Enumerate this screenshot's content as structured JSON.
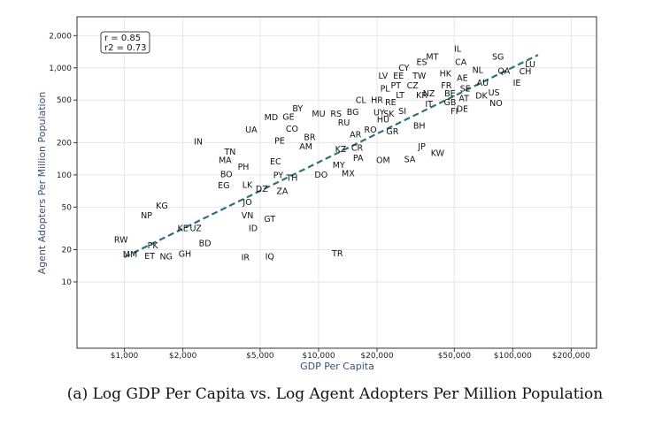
{
  "caption": "(a) Log GDP Per Capita vs. Log Agent Adopters Per Million Population",
  "chart_data": {
    "type": "scatter",
    "xscale": "log",
    "yscale": "log",
    "xlabel": "GDP Per Capita",
    "ylabel": "Agent Adopters Per Million Population",
    "xlim": [
      570,
      270000
    ],
    "ylim": [
      2.4,
      3000
    ],
    "grid": true,
    "xticks": [
      {
        "value": 1000,
        "label": "$1,000"
      },
      {
        "value": 2000,
        "label": "$2,000"
      },
      {
        "value": 5000,
        "label": "$5,000"
      },
      {
        "value": 10000,
        "label": "$10,000"
      },
      {
        "value": 20000,
        "label": "$20,000"
      },
      {
        "value": 50000,
        "label": "$50,000"
      },
      {
        "value": 100000,
        "label": "$100,000"
      },
      {
        "value": 200000,
        "label": "$200,000"
      }
    ],
    "yticks": [
      {
        "value": 10,
        "label": "10"
      },
      {
        "value": 20,
        "label": "20"
      },
      {
        "value": 50,
        "label": "50"
      },
      {
        "value": 100,
        "label": "100"
      },
      {
        "value": 200,
        "label": "200"
      },
      {
        "value": 500,
        "label": "500"
      },
      {
        "value": 1000,
        "label": "1,000"
      },
      {
        "value": 2000,
        "label": "2,000"
      }
    ],
    "stats": {
      "r": "r = 0.85",
      "r2": "r2 = 0.73"
    },
    "trendline": {
      "style": "dashed",
      "color": "#2e6f80",
      "x": [
        1000,
        135000
      ],
      "y": [
        17,
        1320
      ]
    },
    "points": [
      {
        "label": "IL",
        "gdp": 52000,
        "adopters": 1520
      },
      {
        "label": "MT",
        "gdp": 38500,
        "adopters": 1270
      },
      {
        "label": "ES",
        "gdp": 34000,
        "adopters": 1140
      },
      {
        "label": "SG",
        "gdp": 84000,
        "adopters": 1270
      },
      {
        "label": "CA",
        "gdp": 54000,
        "adopters": 1140
      },
      {
        "label": "LU",
        "gdp": 123000,
        "adopters": 1080
      },
      {
        "label": "CY",
        "gdp": 27500,
        "adopters": 1010
      },
      {
        "label": "NL",
        "gdp": 66000,
        "adopters": 960
      },
      {
        "label": "QA",
        "gdp": 90000,
        "adopters": 940
      },
      {
        "label": "CH",
        "gdp": 116000,
        "adopters": 930
      },
      {
        "label": "HK",
        "gdp": 45000,
        "adopters": 890
      },
      {
        "label": "LV",
        "gdp": 21500,
        "adopters": 850
      },
      {
        "label": "EE",
        "gdp": 25800,
        "adopters": 850
      },
      {
        "label": "TW",
        "gdp": 33000,
        "adopters": 850
      },
      {
        "label": "AE",
        "gdp": 55000,
        "adopters": 810
      },
      {
        "label": "AU",
        "gdp": 70000,
        "adopters": 730
      },
      {
        "label": "IE",
        "gdp": 105000,
        "adopters": 730
      },
      {
        "label": "PT",
        "gdp": 25000,
        "adopters": 690
      },
      {
        "label": "CZ",
        "gdp": 30500,
        "adopters": 690
      },
      {
        "label": "FR",
        "gdp": 45500,
        "adopters": 690
      },
      {
        "label": "PL",
        "gdp": 22000,
        "adopters": 640
      },
      {
        "label": "SE",
        "gdp": 57000,
        "adopters": 640
      },
      {
        "label": "NZ",
        "gdp": 37000,
        "adopters": 580
      },
      {
        "label": "BE",
        "gdp": 47500,
        "adopters": 580
      },
      {
        "label": "US",
        "gdp": 80000,
        "adopters": 590
      },
      {
        "label": "LT",
        "gdp": 26300,
        "adopters": 560
      },
      {
        "label": "KR",
        "gdp": 34000,
        "adopters": 560
      },
      {
        "label": "DK",
        "gdp": 69000,
        "adopters": 550
      },
      {
        "label": "AT",
        "gdp": 56000,
        "adopters": 520
      },
      {
        "label": "CL",
        "gdp": 16500,
        "adopters": 500
      },
      {
        "label": "HR",
        "gdp": 20000,
        "adopters": 500
      },
      {
        "label": "RE",
        "gdp": 23500,
        "adopters": 480
      },
      {
        "label": "IT",
        "gdp": 37000,
        "adopters": 460
      },
      {
        "label": "GB",
        "gdp": 47500,
        "adopters": 480
      },
      {
        "label": "NO",
        "gdp": 82000,
        "adopters": 470
      },
      {
        "label": "DE",
        "gdp": 55000,
        "adopters": 415
      },
      {
        "label": "FI",
        "gdp": 50000,
        "adopters": 395
      },
      {
        "label": "BY",
        "gdp": 7800,
        "adopters": 420
      },
      {
        "label": "UY",
        "gdp": 20500,
        "adopters": 385
      },
      {
        "label": "SK",
        "gdp": 23000,
        "adopters": 375
      },
      {
        "label": "SI",
        "gdp": 27000,
        "adopters": 395
      },
      {
        "label": "MU",
        "gdp": 10000,
        "adopters": 375
      },
      {
        "label": "RS",
        "gdp": 12300,
        "adopters": 375
      },
      {
        "label": "BG",
        "gdp": 15000,
        "adopters": 390
      },
      {
        "label": "GE",
        "gdp": 7000,
        "adopters": 350
      },
      {
        "label": "MD",
        "gdp": 5700,
        "adopters": 345
      },
      {
        "label": "HU",
        "gdp": 21500,
        "adopters": 330
      },
      {
        "label": "RU",
        "gdp": 13500,
        "adopters": 310
      },
      {
        "label": "BH",
        "gdp": 33000,
        "adopters": 290
      },
      {
        "label": "CO",
        "gdp": 7300,
        "adopters": 270
      },
      {
        "label": "UA",
        "gdp": 4500,
        "adopters": 265
      },
      {
        "label": "RO",
        "gdp": 18500,
        "adopters": 265
      },
      {
        "label": "GR",
        "gdp": 24000,
        "adopters": 255
      },
      {
        "label": "AR",
        "gdp": 15500,
        "adopters": 240
      },
      {
        "label": "BR",
        "gdp": 9000,
        "adopters": 225
      },
      {
        "label": "PE",
        "gdp": 6300,
        "adopters": 210
      },
      {
        "label": "IN",
        "gdp": 2400,
        "adopters": 205
      },
      {
        "label": "AM",
        "gdp": 8600,
        "adopters": 185
      },
      {
        "label": "JP",
        "gdp": 34000,
        "adopters": 185
      },
      {
        "label": "KZ",
        "gdp": 13000,
        "adopters": 175
      },
      {
        "label": "CR",
        "gdp": 15800,
        "adopters": 180
      },
      {
        "label": "TN",
        "gdp": 3500,
        "adopters": 165
      },
      {
        "label": "KW",
        "gdp": 41000,
        "adopters": 160
      },
      {
        "label": "MA",
        "gdp": 3300,
        "adopters": 138
      },
      {
        "label": "PA",
        "gdp": 16000,
        "adopters": 145
      },
      {
        "label": "OM",
        "gdp": 21500,
        "adopters": 138
      },
      {
        "label": "SA",
        "gdp": 29500,
        "adopters": 140
      },
      {
        "label": "EC",
        "gdp": 6000,
        "adopters": 134
      },
      {
        "label": "MY",
        "gdp": 12700,
        "adopters": 124
      },
      {
        "label": "PH",
        "gdp": 4100,
        "adopters": 119
      },
      {
        "label": "MX",
        "gdp": 14200,
        "adopters": 104
      },
      {
        "label": "BO",
        "gdp": 3350,
        "adopters": 102
      },
      {
        "label": "PY",
        "gdp": 6200,
        "adopters": 100
      },
      {
        "label": "DO",
        "gdp": 10300,
        "adopters": 101
      },
      {
        "label": "TH",
        "gdp": 7300,
        "adopters": 94
      },
      {
        "label": "EG",
        "gdp": 3250,
        "adopters": 80
      },
      {
        "label": "LK",
        "gdp": 4300,
        "adopters": 81
      },
      {
        "label": "DZ",
        "gdp": 5100,
        "adopters": 74
      },
      {
        "label": "ZA",
        "gdp": 6500,
        "adopters": 71
      },
      {
        "label": "JO",
        "gdp": 4300,
        "adopters": 56
      },
      {
        "label": "KG",
        "gdp": 1560,
        "adopters": 52
      },
      {
        "label": "NP",
        "gdp": 1300,
        "adopters": 42
      },
      {
        "label": "VN",
        "gdp": 4300,
        "adopters": 42
      },
      {
        "label": "GT",
        "gdp": 5600,
        "adopters": 39
      },
      {
        "label": "KE",
        "gdp": 2000,
        "adopters": 32
      },
      {
        "label": "UZ",
        "gdp": 2330,
        "adopters": 32
      },
      {
        "label": "ID",
        "gdp": 4600,
        "adopters": 32
      },
      {
        "label": "RW",
        "gdp": 960,
        "adopters": 25
      },
      {
        "label": "BD",
        "gdp": 2600,
        "adopters": 23
      },
      {
        "label": "PK",
        "gdp": 1400,
        "adopters": 22
      },
      {
        "label": "MM",
        "gdp": 1070,
        "adopters": 18.2
      },
      {
        "label": "ET",
        "gdp": 1350,
        "adopters": 17.5
      },
      {
        "label": "NG",
        "gdp": 1640,
        "adopters": 17.3
      },
      {
        "label": "GH",
        "gdp": 2050,
        "adopters": 18.3
      },
      {
        "label": "IR",
        "gdp": 4200,
        "adopters": 17.0
      },
      {
        "label": "IQ",
        "gdp": 5600,
        "adopters": 17.3
      },
      {
        "label": "TR",
        "gdp": 12500,
        "adopters": 18.5
      }
    ]
  }
}
